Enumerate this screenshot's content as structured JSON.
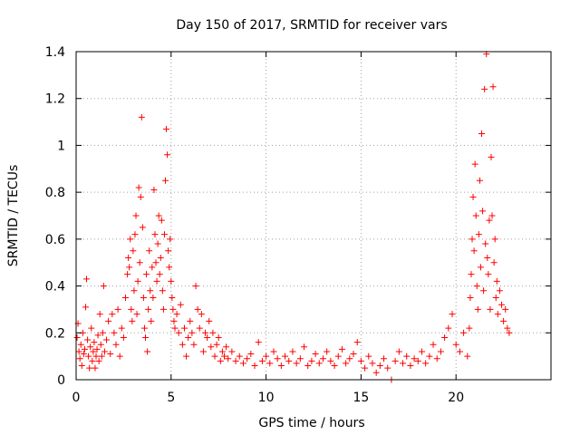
{
  "chart_data": {
    "type": "scatter",
    "title": "Day 150 of 2017, SRMTID for receiver vars",
    "xlabel": "GPS time / hours",
    "ylabel": "SRMTID / TECUs",
    "xlim": [
      0,
      25
    ],
    "ylim": [
      0,
      1.4
    ],
    "x_ticks": [
      0,
      5,
      10,
      15,
      20
    ],
    "x_tick_labels": [
      "0",
      "5",
      "10",
      "15",
      "20"
    ],
    "y_ticks": [
      0,
      0.2,
      0.4,
      0.6,
      0.8,
      1.0,
      1.2,
      1.4
    ],
    "y_tick_labels": [
      "0",
      "0.2",
      "0.4",
      "0.6",
      "0.8",
      "1",
      "1.2",
      "1.4"
    ],
    "grid": true,
    "marker": "+",
    "color": "#ff0000",
    "series": [
      {
        "name": "SRMTID",
        "points": [
          [
            0.05,
            0.18
          ],
          [
            0.1,
            0.24
          ],
          [
            0.15,
            0.12
          ],
          [
            0.2,
            0.09
          ],
          [
            0.25,
            0.15
          ],
          [
            0.3,
            0.06
          ],
          [
            0.35,
            0.2
          ],
          [
            0.4,
            0.11
          ],
          [
            0.45,
            0.13
          ],
          [
            0.5,
            0.31
          ],
          [
            0.55,
            0.43
          ],
          [
            0.6,
            0.17
          ],
          [
            0.65,
            0.1
          ],
          [
            0.7,
            0.05
          ],
          [
            0.75,
            0.14
          ],
          [
            0.8,
            0.22
          ],
          [
            0.85,
            0.08
          ],
          [
            0.9,
            0.12
          ],
          [
            0.95,
            0.16
          ],
          [
            1.0,
            0.05
          ],
          [
            1.05,
            0.1
          ],
          [
            1.1,
            0.13
          ],
          [
            1.15,
            0.19
          ],
          [
            1.2,
            0.08
          ],
          [
            1.25,
            0.28
          ],
          [
            1.3,
            0.15
          ],
          [
            1.35,
            0.1
          ],
          [
            1.4,
            0.2
          ],
          [
            1.45,
            0.4
          ],
          [
            1.5,
            0.12
          ],
          [
            1.6,
            0.17
          ],
          [
            1.7,
            0.25
          ],
          [
            1.8,
            0.11
          ],
          [
            1.9,
            0.28
          ],
          [
            2.0,
            0.2
          ],
          [
            2.1,
            0.15
          ],
          [
            2.2,
            0.3
          ],
          [
            2.3,
            0.1
          ],
          [
            2.4,
            0.22
          ],
          [
            2.5,
            0.18
          ],
          [
            2.6,
            0.35
          ],
          [
            2.7,
            0.45
          ],
          [
            2.75,
            0.52
          ],
          [
            2.8,
            0.48
          ],
          [
            2.85,
            0.6
          ],
          [
            2.9,
            0.3
          ],
          [
            2.95,
            0.25
          ],
          [
            3.0,
            0.55
          ],
          [
            3.05,
            0.38
          ],
          [
            3.1,
            0.62
          ],
          [
            3.15,
            0.7
          ],
          [
            3.2,
            0.28
          ],
          [
            3.25,
            0.42
          ],
          [
            3.3,
            0.82
          ],
          [
            3.35,
            0.5
          ],
          [
            3.4,
            0.78
          ],
          [
            3.45,
            1.12
          ],
          [
            3.5,
            0.65
          ],
          [
            3.55,
            0.35
          ],
          [
            3.6,
            0.22
          ],
          [
            3.65,
            0.18
          ],
          [
            3.7,
            0.45
          ],
          [
            3.75,
            0.12
          ],
          [
            3.8,
            0.3
          ],
          [
            3.85,
            0.55
          ],
          [
            3.9,
            0.38
          ],
          [
            3.95,
            0.25
          ],
          [
            4.0,
            0.48
          ],
          [
            4.05,
            0.35
          ],
          [
            4.1,
            0.81
          ],
          [
            4.15,
            0.62
          ],
          [
            4.2,
            0.5
          ],
          [
            4.25,
            0.42
          ],
          [
            4.3,
            0.58
          ],
          [
            4.35,
            0.7
          ],
          [
            4.4,
            0.45
          ],
          [
            4.45,
            0.52
          ],
          [
            4.5,
            0.68
          ],
          [
            4.55,
            0.38
          ],
          [
            4.6,
            0.3
          ],
          [
            4.65,
            0.62
          ],
          [
            4.7,
            0.85
          ],
          [
            4.75,
            1.07
          ],
          [
            4.8,
            0.96
          ],
          [
            4.85,
            0.55
          ],
          [
            4.9,
            0.48
          ],
          [
            4.95,
            0.6
          ],
          [
            5.0,
            0.42
          ],
          [
            5.05,
            0.35
          ],
          [
            5.1,
            0.3
          ],
          [
            5.15,
            0.25
          ],
          [
            5.2,
            0.22
          ],
          [
            5.3,
            0.28
          ],
          [
            5.4,
            0.2
          ],
          [
            5.5,
            0.32
          ],
          [
            5.6,
            0.15
          ],
          [
            5.7,
            0.22
          ],
          [
            5.8,
            0.1
          ],
          [
            5.9,
            0.18
          ],
          [
            6.0,
            0.25
          ],
          [
            6.1,
            0.2
          ],
          [
            6.2,
            0.15
          ],
          [
            6.3,
            0.4
          ],
          [
            6.4,
            0.3
          ],
          [
            6.5,
            0.22
          ],
          [
            6.6,
            0.28
          ],
          [
            6.7,
            0.12
          ],
          [
            6.8,
            0.2
          ],
          [
            6.9,
            0.18
          ],
          [
            7.0,
            0.25
          ],
          [
            7.1,
            0.14
          ],
          [
            7.2,
            0.2
          ],
          [
            7.3,
            0.1
          ],
          [
            7.4,
            0.15
          ],
          [
            7.5,
            0.18
          ],
          [
            7.6,
            0.08
          ],
          [
            7.7,
            0.12
          ],
          [
            7.8,
            0.1
          ],
          [
            7.9,
            0.14
          ],
          [
            8.0,
            0.09
          ],
          [
            8.2,
            0.12
          ],
          [
            8.4,
            0.08
          ],
          [
            8.6,
            0.1
          ],
          [
            8.8,
            0.07
          ],
          [
            9.0,
            0.09
          ],
          [
            9.2,
            0.11
          ],
          [
            9.4,
            0.06
          ],
          [
            9.6,
            0.16
          ],
          [
            9.8,
            0.08
          ],
          [
            10.0,
            0.1
          ],
          [
            10.2,
            0.07
          ],
          [
            10.4,
            0.12
          ],
          [
            10.6,
            0.09
          ],
          [
            10.8,
            0.06
          ],
          [
            11.0,
            0.1
          ],
          [
            11.2,
            0.08
          ],
          [
            11.4,
            0.12
          ],
          [
            11.6,
            0.07
          ],
          [
            11.8,
            0.09
          ],
          [
            12.0,
            0.14
          ],
          [
            12.2,
            0.06
          ],
          [
            12.4,
            0.08
          ],
          [
            12.6,
            0.11
          ],
          [
            12.8,
            0.07
          ],
          [
            13.0,
            0.09
          ],
          [
            13.2,
            0.12
          ],
          [
            13.4,
            0.08
          ],
          [
            13.6,
            0.06
          ],
          [
            13.8,
            0.1
          ],
          [
            14.0,
            0.13
          ],
          [
            14.2,
            0.07
          ],
          [
            14.4,
            0.09
          ],
          [
            14.6,
            0.11
          ],
          [
            14.8,
            0.16
          ],
          [
            15.0,
            0.08
          ],
          [
            15.2,
            0.05
          ],
          [
            15.4,
            0.1
          ],
          [
            15.6,
            0.07
          ],
          [
            15.8,
            0.03
          ],
          [
            16.0,
            0.06
          ],
          [
            16.2,
            0.09
          ],
          [
            16.4,
            0.05
          ],
          [
            16.6,
            0.0
          ],
          [
            16.8,
            0.08
          ],
          [
            17.0,
            0.12
          ],
          [
            17.2,
            0.07
          ],
          [
            17.4,
            0.1
          ],
          [
            17.6,
            0.06
          ],
          [
            17.8,
            0.09
          ],
          [
            18.0,
            0.08
          ],
          [
            18.2,
            0.12
          ],
          [
            18.4,
            0.07
          ],
          [
            18.6,
            0.1
          ],
          [
            18.8,
            0.15
          ],
          [
            19.0,
            0.09
          ],
          [
            19.2,
            0.12
          ],
          [
            19.4,
            0.18
          ],
          [
            19.6,
            0.22
          ],
          [
            19.8,
            0.28
          ],
          [
            20.0,
            0.15
          ],
          [
            20.2,
            0.12
          ],
          [
            20.4,
            0.2
          ],
          [
            20.6,
            0.1
          ],
          [
            20.7,
            0.22
          ],
          [
            20.75,
            0.35
          ],
          [
            20.8,
            0.45
          ],
          [
            20.85,
            0.6
          ],
          [
            20.9,
            0.78
          ],
          [
            20.95,
            0.55
          ],
          [
            21.0,
            0.92
          ],
          [
            21.05,
            0.7
          ],
          [
            21.1,
            0.4
          ],
          [
            21.15,
            0.3
          ],
          [
            21.2,
            0.62
          ],
          [
            21.25,
            0.85
          ],
          [
            21.3,
            0.48
          ],
          [
            21.35,
            1.05
          ],
          [
            21.4,
            0.72
          ],
          [
            21.45,
            0.38
          ],
          [
            21.5,
            1.24
          ],
          [
            21.55,
            0.58
          ],
          [
            21.6,
            1.39
          ],
          [
            21.65,
            0.52
          ],
          [
            21.7,
            0.45
          ],
          [
            21.75,
            0.68
          ],
          [
            21.8,
            0.3
          ],
          [
            21.85,
            0.95
          ],
          [
            21.9,
            0.7
          ],
          [
            21.95,
            1.25
          ],
          [
            22.0,
            0.5
          ],
          [
            22.05,
            0.6
          ],
          [
            22.1,
            0.35
          ],
          [
            22.15,
            0.42
          ],
          [
            22.2,
            0.28
          ],
          [
            22.3,
            0.38
          ],
          [
            22.4,
            0.32
          ],
          [
            22.5,
            0.25
          ],
          [
            22.6,
            0.3
          ],
          [
            22.7,
            0.22
          ],
          [
            22.8,
            0.2
          ]
        ]
      }
    ]
  }
}
